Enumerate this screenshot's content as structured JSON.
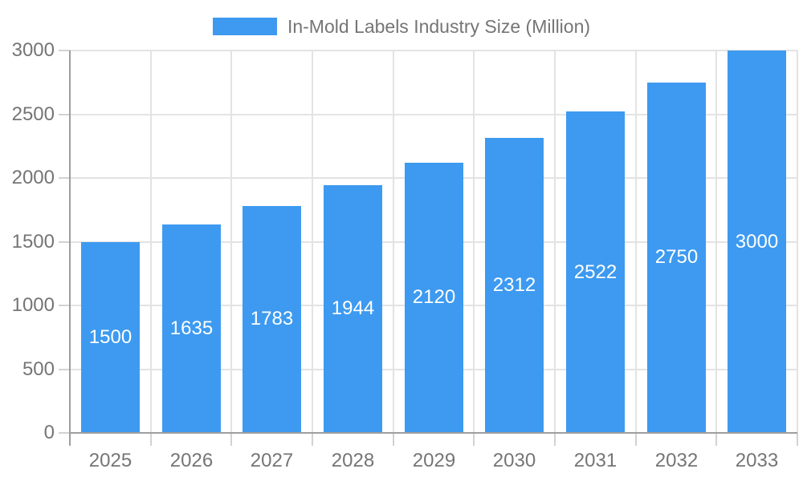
{
  "legend": {
    "label": "In-Mold Labels Industry Size (Million)"
  },
  "colors": {
    "bar": "#3d9af0",
    "grid": "#e3e3e3",
    "axis": "#9e9e9e",
    "tick": "#d2d2d2",
    "axis_label_text": "#757575",
    "legend_text": "#757575",
    "value_label_text": "#ffffff",
    "background": "#ffffff"
  },
  "chart_data": {
    "type": "bar",
    "title": "In-Mold Labels Industry Size (Million)",
    "categories": [
      "2025",
      "2026",
      "2027",
      "2028",
      "2029",
      "2030",
      "2031",
      "2032",
      "2033"
    ],
    "values": [
      1500,
      1635,
      1783,
      1944,
      2120,
      2312,
      2522,
      2750,
      3000
    ],
    "series_name": "In-Mold Labels Industry Size (Million)",
    "xlabel": "",
    "ylabel": "",
    "ylim": [
      0,
      3000
    ],
    "yticks": [
      0,
      500,
      1000,
      1500,
      2000,
      2500,
      3000
    ],
    "grid": true,
    "legend_position": "top",
    "value_label_position": "inside-middle"
  }
}
